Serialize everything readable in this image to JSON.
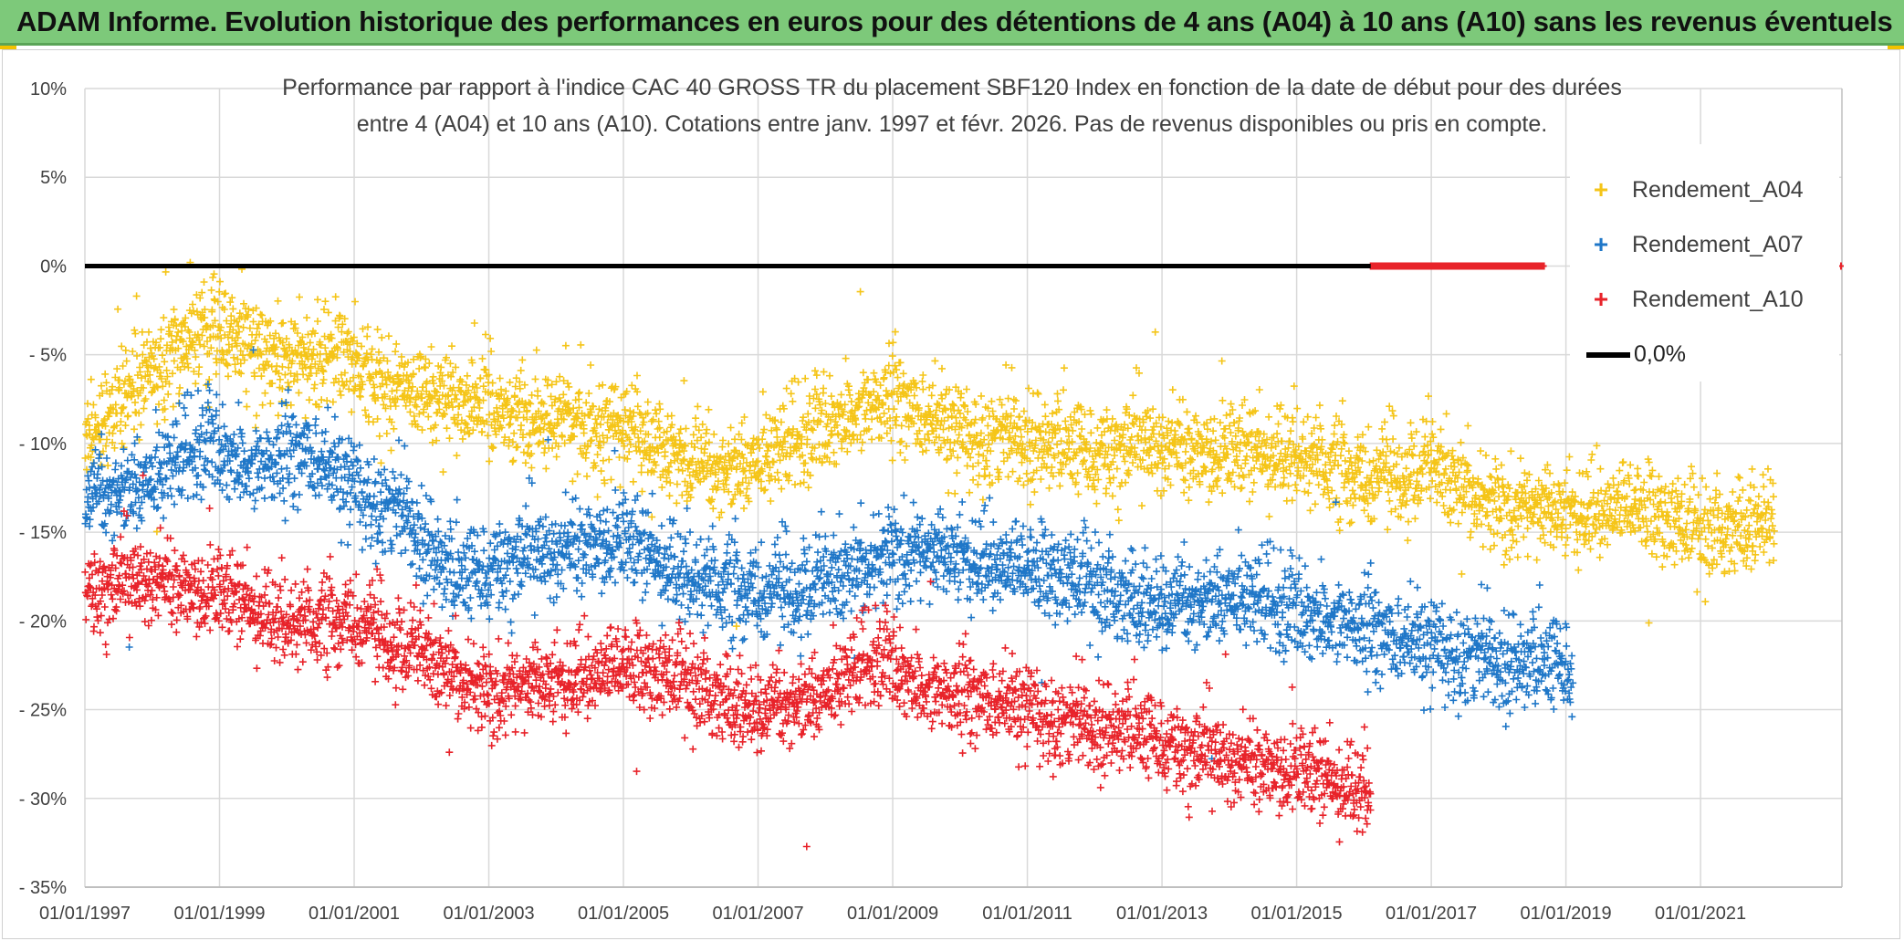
{
  "banner": {
    "title": "ADAM Informe. Evolution historique des performances en euros pour des détentions de 4 ans (A04) à 10 ans (A10) sans les revenus éventuels"
  },
  "chart_data": {
    "type": "scatter",
    "title_lines": [
      "Performance par rapport à l'indice CAC 40 GROSS TR  du placement SBF120 Index en fonction de la date de début pour des durées",
      "entre 4 (A04) et 10 ans (A10). Cotations entre janv. 1997 et févr. 2026. Pas de revenus disponibles ou pris en compte."
    ],
    "xlabel": "",
    "ylabel": "",
    "x_range": [
      "1997-01-01",
      "2023-02-01"
    ],
    "x_ticks": [
      "01/01/1997",
      "01/01/1999",
      "01/01/2001",
      "01/01/2003",
      "01/01/2005",
      "01/01/2007",
      "01/01/2009",
      "01/01/2011",
      "01/01/2013",
      "01/01/2015",
      "01/01/2017",
      "01/01/2019",
      "01/01/2021"
    ],
    "x_tick_years": [
      1997,
      1999,
      2001,
      2003,
      2005,
      2007,
      2009,
      2011,
      2013,
      2015,
      2017,
      2019,
      2021
    ],
    "ylim": [
      -35,
      10
    ],
    "y_ticks": [
      10,
      5,
      0,
      -5,
      -10,
      -15,
      -20,
      -25,
      -30,
      -35
    ],
    "y_tick_labels": [
      "10%",
      "5%",
      "0%",
      "- 5%",
      "- 10%",
      "- 15%",
      "- 20%",
      "- 25%",
      "- 30%",
      "- 35%"
    ],
    "grid": "horizontal and vertical",
    "legend_position": "top-right",
    "series": [
      {
        "name": "Rendement_A04",
        "color": "#f5c518",
        "marker": "+",
        "date_range": [
          "1997-01-01",
          "2022-02-01"
        ],
        "spread": 1.3,
        "trend": [
          {
            "x": 1997.0,
            "y": -9.5
          },
          {
            "x": 1998.0,
            "y": -6.0
          },
          {
            "x": 1998.7,
            "y": -3.5
          },
          {
            "x": 1999.3,
            "y": -4.0
          },
          {
            "x": 2000.0,
            "y": -5.5
          },
          {
            "x": 2000.8,
            "y": -5.0
          },
          {
            "x": 2001.5,
            "y": -7.0
          },
          {
            "x": 2002.5,
            "y": -7.5
          },
          {
            "x": 2003.5,
            "y": -8.5
          },
          {
            "x": 2005.0,
            "y": -9.0
          },
          {
            "x": 2006.0,
            "y": -11.5
          },
          {
            "x": 2007.0,
            "y": -11.0
          },
          {
            "x": 2008.0,
            "y": -9.0
          },
          {
            "x": 2009.0,
            "y": -7.5
          },
          {
            "x": 2010.0,
            "y": -9.5
          },
          {
            "x": 2011.0,
            "y": -9.5
          },
          {
            "x": 2012.0,
            "y": -10.5
          },
          {
            "x": 2013.0,
            "y": -10.0
          },
          {
            "x": 2014.0,
            "y": -10.5
          },
          {
            "x": 2015.0,
            "y": -10.5
          },
          {
            "x": 2016.0,
            "y": -12.0
          },
          {
            "x": 2017.0,
            "y": -11.5
          },
          {
            "x": 2018.0,
            "y": -13.5
          },
          {
            "x": 2019.0,
            "y": -14.0
          },
          {
            "x": 2020.0,
            "y": -13.5
          },
          {
            "x": 2021.0,
            "y": -15.0
          },
          {
            "x": 2022.1,
            "y": -14.0
          }
        ]
      },
      {
        "name": "Rendement_A07",
        "color": "#1f77c8",
        "marker": "+",
        "date_range": [
          "1997-01-01",
          "2019-02-01"
        ],
        "spread": 1.3,
        "trend": [
          {
            "x": 1997.0,
            "y": -13.0
          },
          {
            "x": 1998.0,
            "y": -12.0
          },
          {
            "x": 1998.8,
            "y": -10.0
          },
          {
            "x": 1999.5,
            "y": -11.5
          },
          {
            "x": 2000.3,
            "y": -10.5
          },
          {
            "x": 2001.0,
            "y": -12.5
          },
          {
            "x": 2001.8,
            "y": -14.0
          },
          {
            "x": 2002.5,
            "y": -17.5
          },
          {
            "x": 2003.5,
            "y": -16.5
          },
          {
            "x": 2004.5,
            "y": -15.5
          },
          {
            "x": 2005.0,
            "y": -15.5
          },
          {
            "x": 2006.0,
            "y": -17.5
          },
          {
            "x": 2007.0,
            "y": -18.5
          },
          {
            "x": 2008.0,
            "y": -18.0
          },
          {
            "x": 2009.0,
            "y": -16.0
          },
          {
            "x": 2010.0,
            "y": -16.5
          },
          {
            "x": 2011.0,
            "y": -17.0
          },
          {
            "x": 2012.0,
            "y": -18.0
          },
          {
            "x": 2013.0,
            "y": -19.0
          },
          {
            "x": 2014.0,
            "y": -18.5
          },
          {
            "x": 2015.0,
            "y": -19.5
          },
          {
            "x": 2016.0,
            "y": -20.5
          },
          {
            "x": 2017.0,
            "y": -21.5
          },
          {
            "x": 2018.0,
            "y": -22.0
          },
          {
            "x": 2019.1,
            "y": -22.5
          }
        ]
      },
      {
        "name": "Rendement_A10",
        "color": "#e8232a",
        "marker": "+",
        "date_range": [
          "1997-01-01",
          "2016-02-01"
        ],
        "spread": 1.2,
        "trend": [
          {
            "x": 1997.0,
            "y": -18.5
          },
          {
            "x": 1998.0,
            "y": -17.5
          },
          {
            "x": 1999.0,
            "y": -18.5
          },
          {
            "x": 2000.0,
            "y": -20.0
          },
          {
            "x": 2001.0,
            "y": -20.0
          },
          {
            "x": 2002.0,
            "y": -22.0
          },
          {
            "x": 2003.0,
            "y": -24.0
          },
          {
            "x": 2004.0,
            "y": -23.5
          },
          {
            "x": 2005.0,
            "y": -22.5
          },
          {
            "x": 2006.0,
            "y": -23.5
          },
          {
            "x": 2007.0,
            "y": -25.0
          },
          {
            "x": 2008.0,
            "y": -24.0
          },
          {
            "x": 2008.8,
            "y": -22.0
          },
          {
            "x": 2009.5,
            "y": -24.0
          },
          {
            "x": 2010.5,
            "y": -24.5
          },
          {
            "x": 2011.5,
            "y": -25.5
          },
          {
            "x": 2012.5,
            "y": -26.0
          },
          {
            "x": 2013.5,
            "y": -27.5
          },
          {
            "x": 2014.5,
            "y": -28.0
          },
          {
            "x": 2015.5,
            "y": -29.0
          },
          {
            "x": 2016.1,
            "y": -29.5
          }
        ]
      },
      {
        "name": "0,0%",
        "type": "line",
        "color": "#000000",
        "y": 0,
        "x_range": [
          1997.0,
          2016.1
        ]
      }
    ],
    "zero_marker_series": {
      "color": "#e8232a",
      "y": 0,
      "x_range": [
        2016.1,
        2023.1
      ]
    }
  },
  "legend": {
    "items": [
      {
        "label": "Rendement_A04",
        "color": "#f5c518",
        "symbol": "+"
      },
      {
        "label": "Rendement_A07",
        "color": "#1f77c8",
        "symbol": "+"
      },
      {
        "label": "Rendement_A10",
        "color": "#e8232a",
        "symbol": "+"
      },
      {
        "label": "0,0%",
        "color": "#000000",
        "symbol": "line"
      }
    ]
  }
}
